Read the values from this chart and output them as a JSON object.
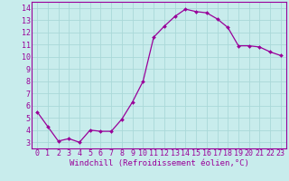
{
  "x": [
    0,
    1,
    2,
    3,
    4,
    5,
    6,
    7,
    8,
    9,
    10,
    11,
    12,
    13,
    14,
    15,
    16,
    17,
    18,
    19,
    20,
    21,
    22,
    23
  ],
  "y": [
    5.5,
    4.3,
    3.1,
    3.3,
    3.0,
    4.0,
    3.9,
    3.9,
    4.9,
    6.3,
    8.0,
    11.6,
    12.5,
    13.3,
    13.9,
    13.7,
    13.6,
    13.1,
    12.4,
    10.9,
    10.9,
    10.8,
    10.4,
    10.1
  ],
  "line_color": "#990099",
  "marker_color": "#990099",
  "bg_color": "#c8ecec",
  "grid_color": "#aad8d8",
  "xlabel": "Windchill (Refroidissement éolien,°C)",
  "xlim": [
    -0.5,
    23.5
  ],
  "ylim": [
    2.5,
    14.5
  ],
  "yticks": [
    3,
    4,
    5,
    6,
    7,
    8,
    9,
    10,
    11,
    12,
    13,
    14
  ],
  "xticks": [
    0,
    1,
    2,
    3,
    4,
    5,
    6,
    7,
    8,
    9,
    10,
    11,
    12,
    13,
    14,
    15,
    16,
    17,
    18,
    19,
    20,
    21,
    22,
    23
  ],
  "xlabel_fontsize": 6.5,
  "tick_fontsize": 6.0,
  "line_width": 0.9,
  "marker_size": 2.0
}
